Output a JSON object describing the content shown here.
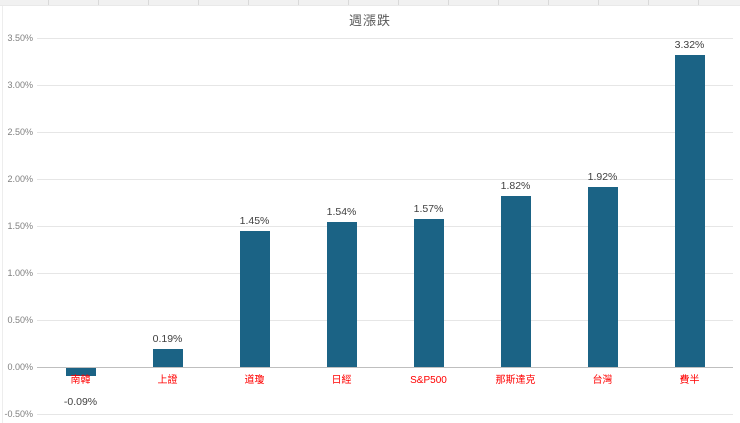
{
  "app": {
    "context_note": "embedded spreadsheet bar chart"
  },
  "chart_data": {
    "type": "bar",
    "title": "週漲跌",
    "categories": [
      "南韓",
      "上證",
      "道瓊",
      "日經",
      "S&P500",
      "那斯達克",
      "台灣",
      "費半"
    ],
    "values": [
      -0.09,
      0.19,
      1.45,
      1.54,
      1.57,
      1.82,
      1.92,
      3.32
    ],
    "value_labels": [
      "-0.09%",
      "0.19%",
      "1.45%",
      "1.54%",
      "1.57%",
      "1.82%",
      "1.92%",
      "3.32%"
    ],
    "xlabel": "",
    "ylabel": "",
    "ylim": [
      -0.5,
      3.5
    ],
    "y_tick_step": 0.5,
    "y_tick_labels": [
      "3.50%",
      "3.00%",
      "2.50%",
      "2.00%",
      "1.50%",
      "1.00%",
      "0.50%",
      "0.00%",
      "-0.50%"
    ],
    "y_tick_values": [
      3.5,
      3.0,
      2.5,
      2.0,
      1.5,
      1.0,
      0.5,
      0.0,
      -0.5
    ],
    "grid": true,
    "legend": "none",
    "colors": {
      "bar": "#1b6385",
      "grid": "#e6e6e6",
      "zero_axis": "#bfbfbf",
      "category_label": "#ff0000",
      "value_label": "#404040",
      "axis_tick_label": "#7f7f7f",
      "title": "#595959"
    }
  }
}
